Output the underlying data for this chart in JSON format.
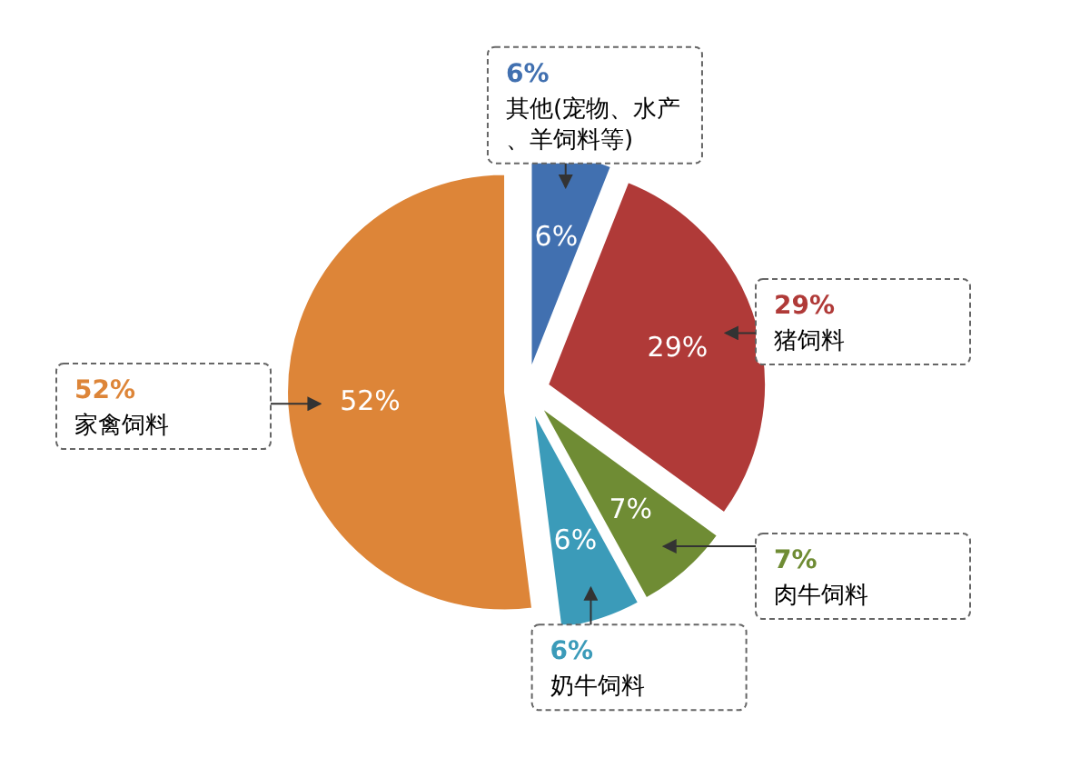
{
  "chart_data": {
    "type": "pie",
    "categories": [
      "其他(宠物、水产、羊饲料等)",
      "猪饲料",
      "肉牛饲料",
      "奶牛饲料",
      "家禽饲料"
    ],
    "values": [
      6,
      29,
      7,
      6,
      52
    ],
    "value_labels": [
      "6%",
      "29%",
      "7%",
      "6%",
      "52%"
    ],
    "annotations": [
      "6%",
      "29%",
      "7%",
      "6%",
      "52%"
    ],
    "colors": [
      "#4170b0",
      "#b03a38",
      "#6f8c34",
      "#3b9bb9",
      "#dd8538"
    ]
  }
}
